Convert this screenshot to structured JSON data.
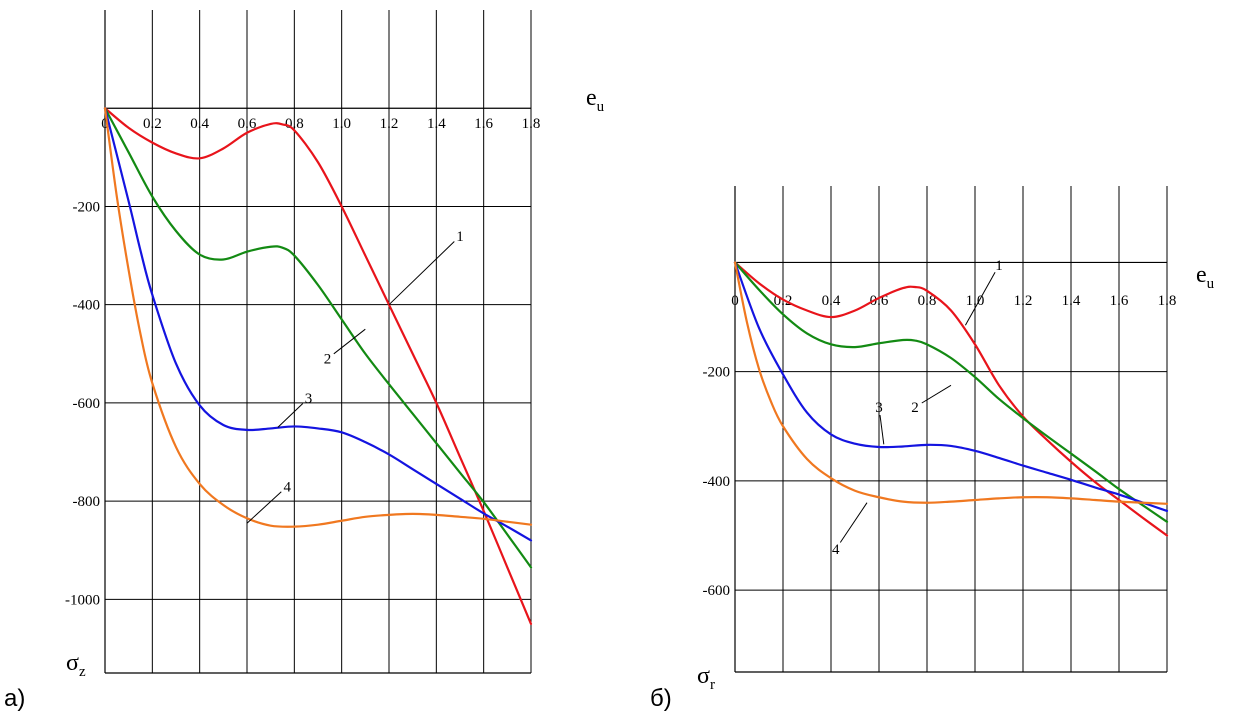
{
  "chart_data": [
    {
      "type": "line",
      "panel_label": "а)",
      "xlabel": "e",
      "xlabel_sub": "u",
      "ylabel": "σ",
      "ylabel_sub": "z",
      "xlim": [
        0,
        1.8
      ],
      "ylim": [
        -1150,
        200
      ],
      "x_ticks": [
        0,
        0.2,
        0.4,
        0.6,
        0.8,
        1.0,
        1.2,
        1.4,
        1.6,
        1.8
      ],
      "x_tick_labels": [
        "0",
        "0.2",
        "0.4",
        "0.6",
        "0.8",
        "1.0",
        "1.2",
        "1.4",
        "1.6",
        "1.8"
      ],
      "y_ticks": [
        -200,
        -400,
        -600,
        -800,
        -1000
      ],
      "y_tick_labels": [
        "-200",
        "-400",
        "-600",
        "-800",
        "-1000"
      ],
      "grid": true,
      "series": [
        {
          "name": "1",
          "color": "#e8141b",
          "x": [
            0,
            0.1,
            0.2,
            0.3,
            0.4,
            0.5,
            0.6,
            0.7,
            0.75,
            0.8,
            0.9,
            1.0,
            1.1,
            1.2,
            1.3,
            1.4,
            1.5,
            1.6,
            1.7,
            1.8
          ],
          "y": [
            0,
            -40,
            -70,
            -92,
            -102,
            -82,
            -50,
            -32,
            -33,
            -45,
            -110,
            -200,
            -300,
            -400,
            -500,
            -600,
            -710,
            -820,
            -935,
            -1050
          ],
          "label_at": [
            1.5,
            -260
          ],
          "point_at": [
            1.2,
            -400
          ]
        },
        {
          "name": "2",
          "color": "#138a13",
          "x": [
            0,
            0.1,
            0.2,
            0.3,
            0.4,
            0.5,
            0.6,
            0.7,
            0.75,
            0.8,
            0.9,
            1.0,
            1.1,
            1.2,
            1.3,
            1.4,
            1.5,
            1.6,
            1.7,
            1.8
          ],
          "y": [
            0,
            -90,
            -180,
            -250,
            -298,
            -308,
            -292,
            -282,
            -284,
            -300,
            -360,
            -430,
            -500,
            -562,
            -622,
            -682,
            -742,
            -802,
            -868,
            -935
          ],
          "label_at": [
            0.94,
            -510
          ],
          "point_at": [
            1.1,
            -450
          ]
        },
        {
          "name": "3",
          "color": "#1414e0",
          "x": [
            0,
            0.1,
            0.15,
            0.2,
            0.3,
            0.4,
            0.5,
            0.6,
            0.7,
            0.8,
            0.9,
            1.0,
            1.1,
            1.2,
            1.3,
            1.4,
            1.5,
            1.6,
            1.7,
            1.8
          ],
          "y": [
            0,
            -190,
            -290,
            -380,
            -520,
            -605,
            -645,
            -655,
            -652,
            -648,
            -652,
            -660,
            -680,
            -705,
            -735,
            -765,
            -795,
            -825,
            -852,
            -880
          ],
          "label_at": [
            0.86,
            -590
          ],
          "point_at": [
            0.73,
            -650
          ]
        },
        {
          "name": "4",
          "color": "#f07820",
          "x": [
            0,
            0.05,
            0.1,
            0.15,
            0.2,
            0.3,
            0.4,
            0.5,
            0.6,
            0.7,
            0.8,
            0.9,
            1.0,
            1.1,
            1.2,
            1.3,
            1.4,
            1.5,
            1.6,
            1.7,
            1.8
          ],
          "y": [
            0,
            -180,
            -330,
            -460,
            -560,
            -690,
            -765,
            -808,
            -835,
            -850,
            -852,
            -848,
            -840,
            -832,
            -828,
            -826,
            -828,
            -832,
            -836,
            -842,
            -848
          ],
          "label_at": [
            0.77,
            -770
          ],
          "point_at": [
            0.6,
            -845
          ]
        }
      ]
    },
    {
      "type": "line",
      "panel_label": "б)",
      "xlabel": "e",
      "xlabel_sub": "u",
      "ylabel": "σ",
      "ylabel_sub": "r",
      "xlim": [
        0,
        1.8
      ],
      "ylim": [
        -750,
        140
      ],
      "x_ticks": [
        0,
        0.2,
        0.4,
        0.6,
        0.8,
        1.0,
        1.2,
        1.4,
        1.6,
        1.8
      ],
      "x_tick_labels": [
        "0",
        "0.2",
        "0.4",
        "0.6",
        "0.8",
        "1.0",
        "1.2",
        "1.4",
        "1.6",
        "1.8"
      ],
      "y_ticks": [
        -200,
        -400,
        -600
      ],
      "y_tick_labels": [
        "-200",
        "-400",
        "-600"
      ],
      "grid": true,
      "series": [
        {
          "name": "1",
          "color": "#e8141b",
          "x": [
            0,
            0.1,
            0.2,
            0.3,
            0.4,
            0.5,
            0.6,
            0.7,
            0.75,
            0.8,
            0.9,
            1.0,
            1.1,
            1.2,
            1.3,
            1.4,
            1.5,
            1.6,
            1.7,
            1.8
          ],
          "y": [
            0,
            -38,
            -68,
            -88,
            -100,
            -88,
            -65,
            -47,
            -45,
            -52,
            -88,
            -150,
            -225,
            -282,
            -325,
            -365,
            -402,
            -435,
            -468,
            -500
          ],
          "label_at": [
            1.1,
            -5
          ],
          "point_at": [
            0.96,
            -115
          ]
        },
        {
          "name": "2",
          "color": "#138a13",
          "x": [
            0,
            0.1,
            0.2,
            0.3,
            0.4,
            0.5,
            0.6,
            0.7,
            0.75,
            0.8,
            0.9,
            1.0,
            1.1,
            1.2,
            1.3,
            1.4,
            1.5,
            1.6,
            1.7,
            1.8
          ],
          "y": [
            0,
            -50,
            -95,
            -130,
            -150,
            -155,
            -148,
            -142,
            -143,
            -150,
            -175,
            -210,
            -250,
            -285,
            -318,
            -350,
            -382,
            -415,
            -445,
            -475
          ],
          "label_at": [
            0.75,
            -265
          ],
          "point_at": [
            0.9,
            -225
          ]
        },
        {
          "name": "3",
          "color": "#1414e0",
          "x": [
            0,
            0.1,
            0.2,
            0.3,
            0.4,
            0.5,
            0.6,
            0.7,
            0.8,
            0.9,
            1.0,
            1.1,
            1.2,
            1.3,
            1.4,
            1.5,
            1.6,
            1.7,
            1.8
          ],
          "y": [
            0,
            -120,
            -205,
            -275,
            -315,
            -332,
            -338,
            -337,
            -334,
            -336,
            -345,
            -358,
            -372,
            -385,
            -398,
            -412,
            -425,
            -440,
            -455
          ],
          "label_at": [
            0.6,
            -265
          ],
          "point_at": [
            0.62,
            -333
          ]
        },
        {
          "name": "4",
          "color": "#f07820",
          "x": [
            0,
            0.05,
            0.1,
            0.15,
            0.2,
            0.3,
            0.4,
            0.5,
            0.6,
            0.7,
            0.8,
            0.9,
            1.0,
            1.1,
            1.2,
            1.3,
            1.4,
            1.5,
            1.6,
            1.7,
            1.8
          ],
          "y": [
            0,
            -110,
            -195,
            -255,
            -300,
            -360,
            -395,
            -418,
            -430,
            -438,
            -440,
            -438,
            -435,
            -432,
            -430,
            -430,
            -432,
            -435,
            -438,
            -440,
            -442
          ],
          "label_at": [
            0.42,
            -525
          ],
          "point_at": [
            0.55,
            -440
          ]
        }
      ]
    }
  ]
}
